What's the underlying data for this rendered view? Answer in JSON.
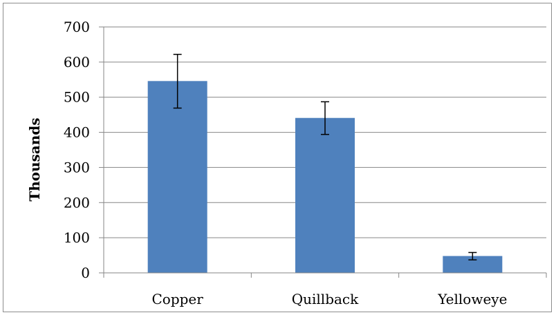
{
  "chart_data": {
    "type": "bar",
    "title": "",
    "xlabel": "",
    "ylabel": "Thousands",
    "categories": [
      "Copper",
      "Quillback",
      "Yelloweye"
    ],
    "values": [
      546,
      441,
      48
    ],
    "error_low": [
      469,
      394,
      37
    ],
    "error_high": [
      622,
      487,
      58
    ],
    "ylim": [
      0,
      700
    ],
    "yticks": [
      0,
      100,
      200,
      300,
      400,
      500,
      600,
      700
    ],
    "grid": true,
    "legend": "none",
    "bar_color": "#4f81bd",
    "grid_color": "#868686"
  }
}
